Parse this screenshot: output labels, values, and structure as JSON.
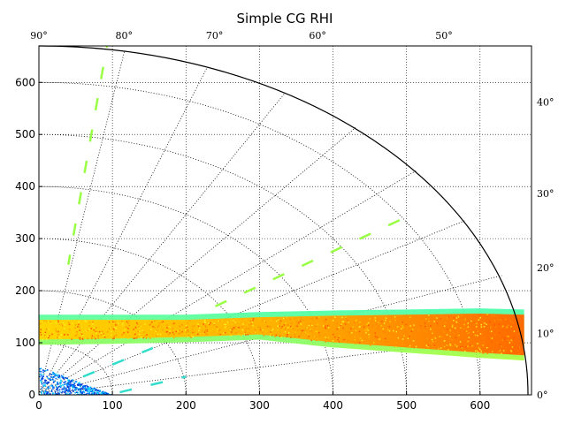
{
  "chart_data": {
    "type": "polar-rhi",
    "title": "Simple CG RHI",
    "xlabel": "",
    "ylabel": "",
    "xlim": [
      0,
      670
    ],
    "ylim": [
      0,
      670
    ],
    "x_ticks": [
      0,
      100,
      200,
      300,
      400,
      500,
      600
    ],
    "y_ticks": [
      0,
      100,
      200,
      300,
      400,
      500,
      600
    ],
    "grid": true,
    "max_range": 670,
    "range_rings": [
      100,
      200,
      300,
      400,
      500,
      600,
      670
    ],
    "angle_labels": {
      "top": [
        {
          "angle": 90,
          "label": "90°"
        },
        {
          "angle": 80,
          "label": "80°"
        },
        {
          "angle": 70,
          "label": "70°"
        },
        {
          "angle": 60,
          "label": "60°"
        },
        {
          "angle": 50,
          "label": "50°"
        }
      ],
      "right": [
        {
          "angle": 40,
          "label": "40°"
        },
        {
          "angle": 30,
          "label": "30°"
        },
        {
          "angle": 20,
          "label": "20°"
        },
        {
          "angle": 10,
          "label": "10°"
        },
        {
          "angle": 0,
          "label": "0°"
        }
      ]
    },
    "colormap": "jet",
    "echo_band": {
      "x": [
        0,
        100,
        200,
        300,
        400,
        500,
        600,
        660
      ],
      "top": [
        150,
        150,
        150,
        155,
        158,
        160,
        162,
        160
      ],
      "bottom": [
        100,
        102,
        105,
        110,
        95,
        85,
        75,
        70
      ],
      "core_color": "#ffb000",
      "edge_color": "#66ff66"
    },
    "dashed_streaks": [
      {
        "from": [
          95,
          690
        ],
        "to": [
          40,
          250
        ],
        "color": "#99ff44"
      },
      {
        "from": [
          240,
          170
        ],
        "to": [
          505,
          345
        ],
        "color": "#99ff44"
      },
      {
        "from": [
          60,
          35
        ],
        "to": [
          155,
          90
        ],
        "color": "#33ddcc"
      },
      {
        "from": [
          110,
          5
        ],
        "to": [
          200,
          35
        ],
        "color": "#33ddcc"
      }
    ],
    "clutter_region": {
      "x": [
        0,
        100
      ],
      "y": [
        0,
        55
      ],
      "color": "#0044dd"
    }
  }
}
